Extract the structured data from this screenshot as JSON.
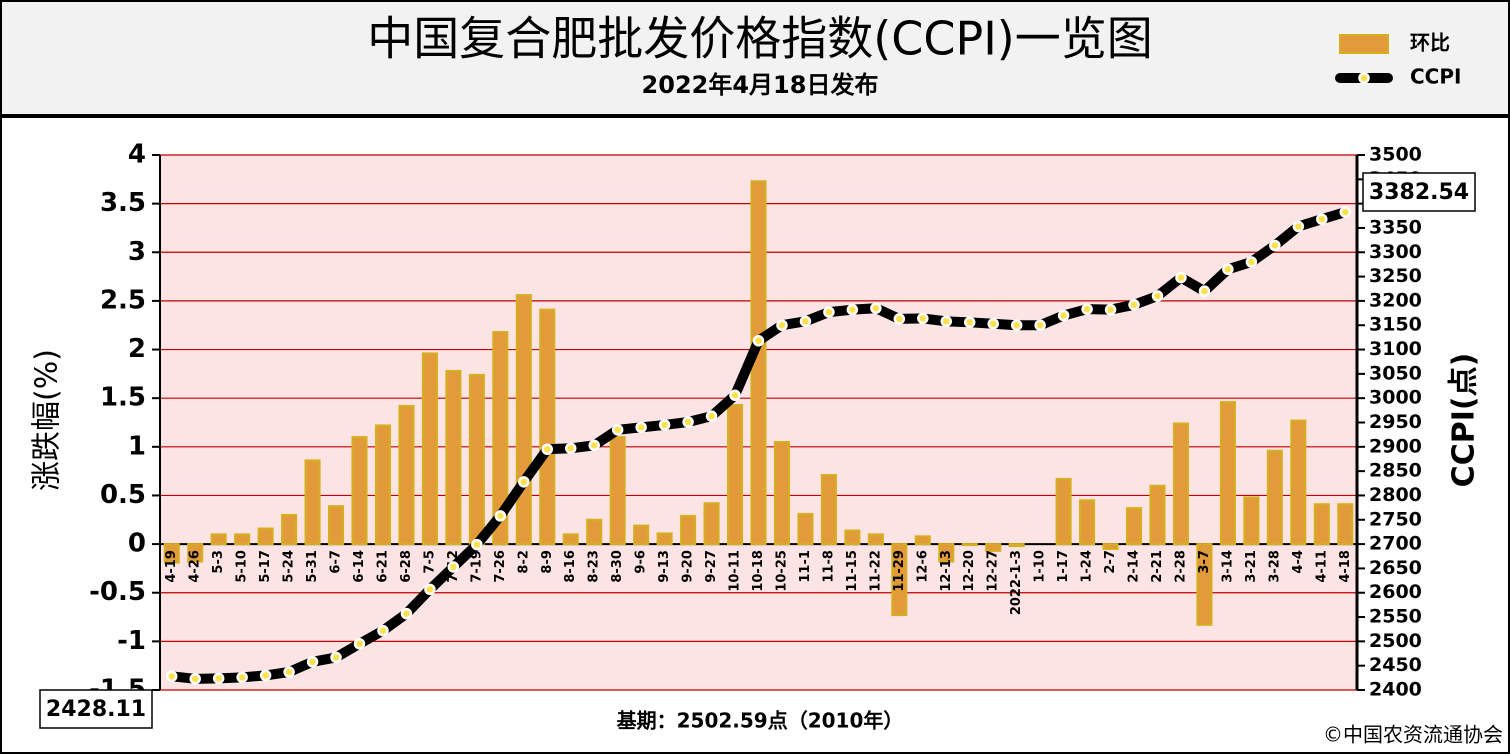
{
  "chart_data": {
    "type": "bar",
    "title": "中国复合肥批发价格指数(CCPI)一览图",
    "subtitle": "2022年4月18日发布",
    "y_label": "涨跌幅(%)",
    "y2_label": "CCPI(点)",
    "footnote": "基期：2502.59点（2010年）",
    "source": "©中国农资流通协会",
    "legend": "top-right",
    "categories": [
      "4-19",
      "4-26",
      "5-3",
      "5-10",
      "5-17",
      "5-24",
      "5-31",
      "6-7",
      "6-14",
      "6-21",
      "6-28",
      "7-5",
      "7-12",
      "7-19",
      "7-26",
      "8-2",
      "8-9",
      "8-16",
      "8-23",
      "8-30",
      "9-6",
      "9-13",
      "9-20",
      "9-27",
      "10-11",
      "10-18",
      "10-25",
      "11-1",
      "11-8",
      "11-15",
      "11-22",
      "11-29",
      "12-6",
      "12-13",
      "12-20",
      "12-27",
      "2022-1-3",
      "1-10",
      "1-17",
      "1-24",
      "2-7",
      "2-14",
      "2-21",
      "2-28",
      "3-7",
      "3-14",
      "3-21",
      "3-28",
      "4-4",
      "4-11",
      "4-18"
    ],
    "series": [
      {
        "name": "环比",
        "type": "bar",
        "color": "#e39a3a",
        "values": [
          -0.19,
          -0.18,
          0.1,
          0.1,
          0.16,
          0.3,
          0.86,
          0.39,
          1.1,
          1.22,
          1.42,
          1.96,
          1.78,
          1.74,
          2.18,
          2.56,
          2.41,
          0.1,
          0.25,
          1.1,
          0.19,
          0.11,
          0.29,
          0.42,
          1.43,
          3.73,
          1.05,
          0.31,
          0.71,
          0.14,
          0.1,
          -0.73,
          0.08,
          -0.18,
          -0.01,
          -0.07,
          -0.02,
          0.0,
          0.67,
          0.45,
          -0.05,
          0.37,
          0.6,
          1.24,
          -0.83,
          1.46,
          0.48,
          0.96,
          1.27,
          0.41,
          0.41
        ]
      },
      {
        "name": "CCPI",
        "type": "line",
        "axis": "y2",
        "color": "#000000",
        "values": [
          2428.11,
          2423,
          2424,
          2426,
          2430,
          2437,
          2458,
          2467,
          2495,
          2522,
          2557,
          2607,
          2653,
          2699,
          2758,
          2828,
          2895,
          2897,
          2903,
          2935,
          2940,
          2945,
          2951,
          2963,
          3006,
          3118,
          3150,
          3158,
          3177,
          3182,
          3185,
          3163,
          3164,
          3158,
          3156,
          3153,
          3150,
          3150,
          3170,
          3183,
          3182,
          3192,
          3210,
          3248,
          3220,
          3265,
          3280,
          3314,
          3353,
          3368,
          3382.54
        ]
      }
    ],
    "ylim": [
      -1.5,
      4
    ],
    "yticks": [
      -1.5,
      -1,
      -0.5,
      0,
      0.5,
      1,
      1.5,
      2,
      2.5,
      3,
      3.5,
      4
    ],
    "y2lim": [
      2400,
      3500
    ],
    "y2ticks": [
      2400,
      2450,
      2500,
      2550,
      2600,
      2650,
      2700,
      2750,
      2800,
      2850,
      2900,
      2950,
      3000,
      3050,
      3100,
      3150,
      3200,
      3250,
      3300,
      3350,
      3400,
      3450,
      3500
    ],
    "grid": true
  }
}
